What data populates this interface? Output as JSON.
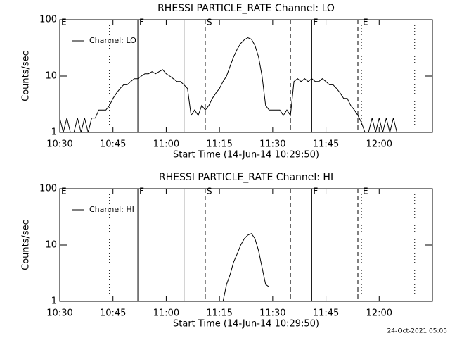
{
  "chart_data": [
    {
      "type": "line",
      "title": "RHESSI PARTICLE_RATE Channel: LO",
      "xlabel": "Start Time (14-Jun-14 10:29:50)",
      "ylabel": "Counts/sec",
      "log_y": true,
      "xlim": [
        "10:30",
        "12:15"
      ],
      "xticks": [
        "10:30",
        "10:45",
        "11:00",
        "11:15",
        "11:30",
        "11:45",
        "12:00"
      ],
      "ylim": [
        1,
        100
      ],
      "yticks": [
        1,
        10,
        100
      ],
      "legend": "upper left",
      "markers": [
        {
          "x": "10:44",
          "style": "dotted"
        },
        {
          "x": "10:52",
          "style": "solid"
        },
        {
          "x": "11:05",
          "style": "solid"
        },
        {
          "x": "11:11",
          "style": "dashed"
        },
        {
          "x": "11:35",
          "style": "dashed"
        },
        {
          "x": "11:41",
          "style": "solid"
        },
        {
          "x": "11:54",
          "style": "dashed"
        },
        {
          "x": "11:55",
          "style": "dotted"
        },
        {
          "x": "12:10",
          "style": "dotted"
        }
      ],
      "annotations": [
        {
          "text": "E",
          "x": "10:30"
        },
        {
          "text": "F",
          "x": "10:52"
        },
        {
          "text": "S",
          "x": "11:11"
        },
        {
          "text": "F",
          "x": "11:41"
        },
        {
          "text": "E",
          "x": "11:55"
        }
      ],
      "x": [
        "10:30",
        "10:31",
        "10:32",
        "10:33",
        "10:34",
        "10:35",
        "10:36",
        "10:37",
        "10:38",
        "10:39",
        "10:40",
        "10:41",
        "10:42",
        "10:43",
        "10:44",
        "10:45",
        "10:46",
        "10:47",
        "10:48",
        "10:49",
        "10:50",
        "10:51",
        "10:52",
        "10:53",
        "10:54",
        "10:55",
        "10:56",
        "10:57",
        "10:58",
        "10:59",
        "11:00",
        "11:01",
        "11:02",
        "11:03",
        "11:04",
        "11:05",
        "11:06",
        "11:07",
        "11:08",
        "11:09",
        "11:10",
        "11:11",
        "11:12",
        "11:13",
        "11:14",
        "11:15",
        "11:16",
        "11:17",
        "11:18",
        "11:19",
        "11:20",
        "11:21",
        "11:22",
        "11:23",
        "11:24",
        "11:25",
        "11:26",
        "11:27",
        "11:28",
        "11:29",
        "11:30",
        "11:31",
        "11:32",
        "11:33",
        "11:34",
        "11:35",
        "11:36",
        "11:37",
        "11:38",
        "11:39",
        "11:40",
        "11:41",
        "11:42",
        "11:43",
        "11:44",
        "11:45",
        "11:46",
        "11:47",
        "11:48",
        "11:49",
        "11:50",
        "11:51",
        "11:52",
        "11:53",
        "11:54",
        "11:55",
        "11:56",
        "11:57",
        "11:58",
        "11:59",
        "12:00",
        "12:01",
        "12:02",
        "12:03",
        "12:04",
        "12:05"
      ],
      "series": [
        {
          "name": "Channel: LO",
          "color": "#000000",
          "values": [
            1.8,
            1,
            1.8,
            1,
            1,
            1.8,
            1,
            1.8,
            1,
            1.8,
            1.8,
            2.5,
            2.5,
            2.5,
            3,
            4,
            5,
            6,
            7,
            7,
            8,
            9,
            9,
            10,
            11,
            11,
            12,
            11,
            12,
            13,
            11,
            10,
            9,
            8,
            8,
            7,
            6,
            2,
            2.5,
            2,
            3,
            2.5,
            3,
            4,
            5,
            6,
            8,
            10,
            15,
            22,
            30,
            38,
            44,
            48,
            45,
            35,
            22,
            10,
            3,
            2.5,
            2.5,
            2.5,
            2.5,
            2,
            2.5,
            2,
            8,
            9,
            8,
            9,
            8,
            9,
            8,
            8,
            9,
            8,
            7,
            7,
            6,
            5,
            4,
            4,
            3,
            2.5,
            2,
            1.5,
            1,
            1,
            1.8,
            1,
            1.8,
            1,
            1.8,
            1,
            1.8,
            1
          ]
        }
      ]
    },
    {
      "type": "line",
      "title": "RHESSI PARTICLE_RATE Channel: HI",
      "xlabel": "Start Time (14-Jun-14 10:29:50)",
      "ylabel": "Counts/sec",
      "log_y": true,
      "xlim": [
        "10:30",
        "12:15"
      ],
      "xticks": [
        "10:30",
        "10:45",
        "11:00",
        "11:15",
        "11:30",
        "11:45",
        "12:00"
      ],
      "ylim": [
        1,
        100
      ],
      "yticks": [
        1,
        10,
        100
      ],
      "legend": "upper left",
      "markers": [
        {
          "x": "10:44",
          "style": "dotted"
        },
        {
          "x": "10:52",
          "style": "solid"
        },
        {
          "x": "11:05",
          "style": "solid"
        },
        {
          "x": "11:11",
          "style": "dashed"
        },
        {
          "x": "11:35",
          "style": "dashed"
        },
        {
          "x": "11:41",
          "style": "solid"
        },
        {
          "x": "11:54",
          "style": "dashed"
        },
        {
          "x": "11:55",
          "style": "dotted"
        },
        {
          "x": "12:10",
          "style": "dotted"
        }
      ],
      "annotations": [
        {
          "text": "E",
          "x": "10:30"
        },
        {
          "text": "F",
          "x": "10:52"
        },
        {
          "text": "S",
          "x": "11:11"
        },
        {
          "text": "F",
          "x": "11:41"
        },
        {
          "text": "E",
          "x": "11:55"
        }
      ],
      "x": [
        "11:16",
        "11:17",
        "11:18",
        "11:19",
        "11:20",
        "11:21",
        "11:22",
        "11:23",
        "11:24",
        "11:25",
        "11:26",
        "11:27",
        "11:28",
        "11:29"
      ],
      "series": [
        {
          "name": "Channel: HI",
          "color": "#000000",
          "values": [
            1,
            2,
            3,
            5,
            7,
            10,
            13,
            15,
            16,
            13,
            8,
            4,
            2,
            1.8
          ]
        }
      ]
    }
  ],
  "footer": "24-Oct-2021 05:05"
}
